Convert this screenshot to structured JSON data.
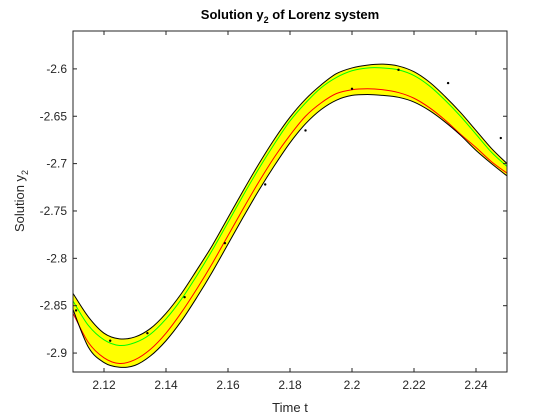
{
  "chart_data": {
    "type": "line",
    "title": {
      "main": "Solution y",
      "sub": "2",
      "rest": " of Lorenz system"
    },
    "xlabel": "Time t",
    "ylabel": {
      "main": "Solution y",
      "sub": "2"
    },
    "xlim": [
      2.11,
      2.25
    ],
    "ylim": [
      -2.92,
      -2.56
    ],
    "xticks": [
      2.12,
      2.14,
      2.16,
      2.18,
      2.2,
      2.22,
      2.24
    ],
    "xtick_labels": [
      "2.12",
      "2.14",
      "2.16",
      "2.18",
      "2.2",
      "2.22",
      "2.24"
    ],
    "yticks": [
      -2.9,
      -2.85,
      -2.8,
      -2.75,
      -2.7,
      -2.65,
      -2.6
    ],
    "ytick_labels": [
      "-2.9",
      "-2.85",
      "-2.8",
      "-2.75",
      "-2.7",
      "-2.65",
      "-2.6"
    ],
    "grid": false,
    "x": [
      2.11,
      2.115,
      2.12,
      2.125,
      2.13,
      2.135,
      2.14,
      2.145,
      2.15,
      2.155,
      2.16,
      2.165,
      2.17,
      2.175,
      2.18,
      2.185,
      2.19,
      2.195,
      2.2,
      2.205,
      2.21,
      2.215,
      2.22,
      2.225,
      2.23,
      2.235,
      2.24,
      2.245,
      2.25
    ],
    "series": [
      {
        "color": "#000000",
        "values": [
          -2.837,
          -2.862,
          -2.879,
          -2.885,
          -2.883,
          -2.874,
          -2.858,
          -2.837,
          -2.812,
          -2.786,
          -2.757,
          -2.728,
          -2.7,
          -2.674,
          -2.651,
          -2.632,
          -2.617,
          -2.605,
          -2.599,
          -2.596,
          -2.595,
          -2.597,
          -2.603,
          -2.614,
          -2.629,
          -2.646,
          -2.665,
          -2.684,
          -2.7
        ]
      },
      {
        "color": "#00ff00",
        "values": [
          -2.845,
          -2.871,
          -2.886,
          -2.892,
          -2.889,
          -2.88,
          -2.864,
          -2.843,
          -2.818,
          -2.791,
          -2.762,
          -2.733,
          -2.705,
          -2.679,
          -2.655,
          -2.636,
          -2.62,
          -2.609,
          -2.602,
          -2.599,
          -2.599,
          -2.601,
          -2.607,
          -2.618,
          -2.633,
          -2.65,
          -2.669,
          -2.688,
          -2.703
        ]
      },
      {
        "color": "#ff0000",
        "values": [
          -2.858,
          -2.889,
          -2.905,
          -2.911,
          -2.907,
          -2.896,
          -2.879,
          -2.857,
          -2.832,
          -2.805,
          -2.776,
          -2.747,
          -2.719,
          -2.693,
          -2.67,
          -2.65,
          -2.636,
          -2.626,
          -2.622,
          -2.621,
          -2.622,
          -2.625,
          -2.631,
          -2.641,
          -2.654,
          -2.669,
          -2.683,
          -2.698,
          -2.71
        ]
      },
      {
        "color": "#000000",
        "values": [
          -2.854,
          -2.894,
          -2.91,
          -2.915,
          -2.913,
          -2.903,
          -2.887,
          -2.866,
          -2.841,
          -2.814,
          -2.785,
          -2.756,
          -2.728,
          -2.702,
          -2.678,
          -2.658,
          -2.643,
          -2.633,
          -2.628,
          -2.627,
          -2.628,
          -2.63,
          -2.635,
          -2.644,
          -2.656,
          -2.67,
          -2.686,
          -2.7,
          -2.713
        ]
      }
    ],
    "band": {
      "color": "#ffff00",
      "upper_series": 0,
      "lower_series": 3
    },
    "markers": {
      "color": "#000000",
      "points": [
        {
          "x": 2.111,
          "y": -2.855
        },
        {
          "x": 2.122,
          "y": -2.887
        },
        {
          "x": 2.134,
          "y": -2.879
        },
        {
          "x": 2.146,
          "y": -2.841
        },
        {
          "x": 2.159,
          "y": -2.784
        },
        {
          "x": 2.172,
          "y": -2.722
        },
        {
          "x": 2.185,
          "y": -2.665
        },
        {
          "x": 2.2,
          "y": -2.621
        },
        {
          "x": 2.215,
          "y": -2.601
        },
        {
          "x": 2.231,
          "y": -2.615
        },
        {
          "x": 2.248,
          "y": -2.673
        }
      ]
    }
  }
}
